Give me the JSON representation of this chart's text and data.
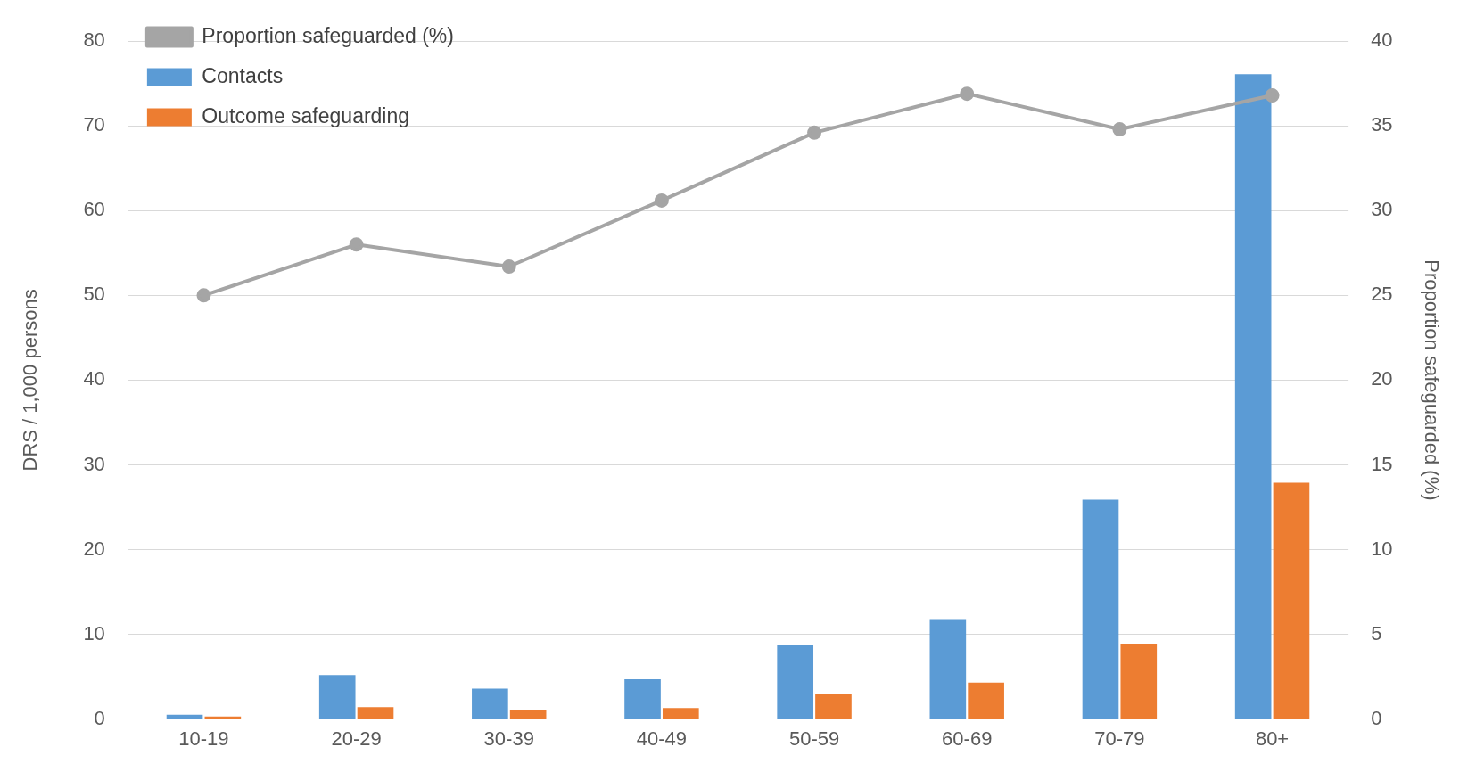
{
  "chart_data": {
    "type": "bar",
    "xlabel": null,
    "ylabel": "DRS / 1,000 persons",
    "y2label": "Proportion safeguarded (%)",
    "categories": [
      "10-19",
      "20-29",
      "30-39",
      "40-49",
      "50-59",
      "60-69",
      "70-79",
      "80+"
    ],
    "series": [
      {
        "name": "Contacts",
        "color": "#5b9bd5",
        "values": [
          0.5,
          5.2,
          3.6,
          4.7,
          8.7,
          11.8,
          25.9,
          76.1
        ]
      },
      {
        "name": "Outcome safeguarding",
        "color": "#ed7d31",
        "values": [
          0.3,
          1.4,
          1.0,
          1.3,
          3.0,
          4.3,
          8.9,
          27.9
        ]
      },
      {
        "name": "Proportion safeguarded (%)",
        "type": "line",
        "axis": "y2",
        "color": "#a5a5a5",
        "values": [
          25.0,
          28.0,
          26.7,
          30.6,
          34.6,
          36.9,
          34.8,
          36.8
        ]
      }
    ],
    "ylim": [
      0,
      80
    ],
    "yticks": [
      0,
      10,
      20,
      30,
      40,
      50,
      60,
      70,
      80
    ],
    "y2lim": [
      0,
      40
    ],
    "y2ticks": [
      0,
      5,
      10,
      15,
      20,
      25,
      30,
      35,
      40
    ],
    "grid": "y",
    "legend": "top left",
    "marker": "circle",
    "line_style": "solid"
  }
}
